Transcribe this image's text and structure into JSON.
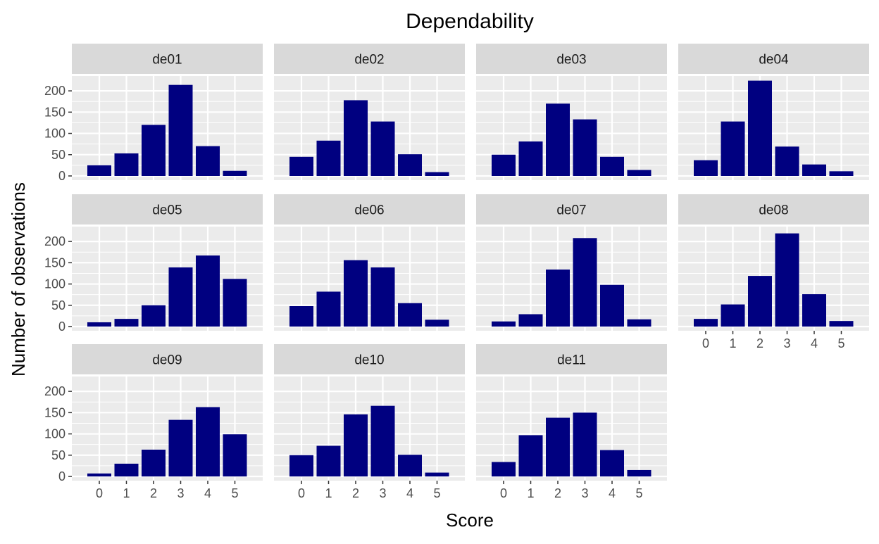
{
  "chart_data": {
    "type": "bar",
    "title": "Dependability",
    "xlabel": "Score",
    "ylabel": "Number of observations",
    "categories": [
      "0",
      "1",
      "2",
      "3",
      "4",
      "5"
    ],
    "ylim": [
      0,
      225
    ],
    "yticks": [
      0,
      50,
      100,
      150,
      200
    ],
    "grid": true,
    "bar_color": "#000080",
    "panel_background": "#EBEBEB",
    "strip_background": "#D9D9D9",
    "panels": [
      {
        "name": "de01",
        "values": [
          25,
          53,
          120,
          214,
          70,
          12
        ]
      },
      {
        "name": "de02",
        "values": [
          45,
          83,
          178,
          128,
          51,
          9
        ]
      },
      {
        "name": "de03",
        "values": [
          50,
          81,
          170,
          133,
          45,
          14
        ]
      },
      {
        "name": "de04",
        "values": [
          37,
          128,
          224,
          69,
          27,
          11
        ]
      },
      {
        "name": "de05",
        "values": [
          10,
          18,
          50,
          139,
          167,
          112
        ]
      },
      {
        "name": "de06",
        "values": [
          48,
          82,
          156,
          139,
          55,
          16
        ]
      },
      {
        "name": "de07",
        "values": [
          12,
          29,
          134,
          208,
          98,
          17
        ]
      },
      {
        "name": "de08",
        "values": [
          18,
          52,
          119,
          219,
          76,
          13
        ]
      },
      {
        "name": "de09",
        "values": [
          7,
          30,
          63,
          133,
          163,
          99
        ]
      },
      {
        "name": "de10",
        "values": [
          50,
          72,
          146,
          166,
          51,
          9
        ]
      },
      {
        "name": "de11",
        "values": [
          34,
          97,
          138,
          150,
          62,
          15
        ]
      }
    ]
  }
}
